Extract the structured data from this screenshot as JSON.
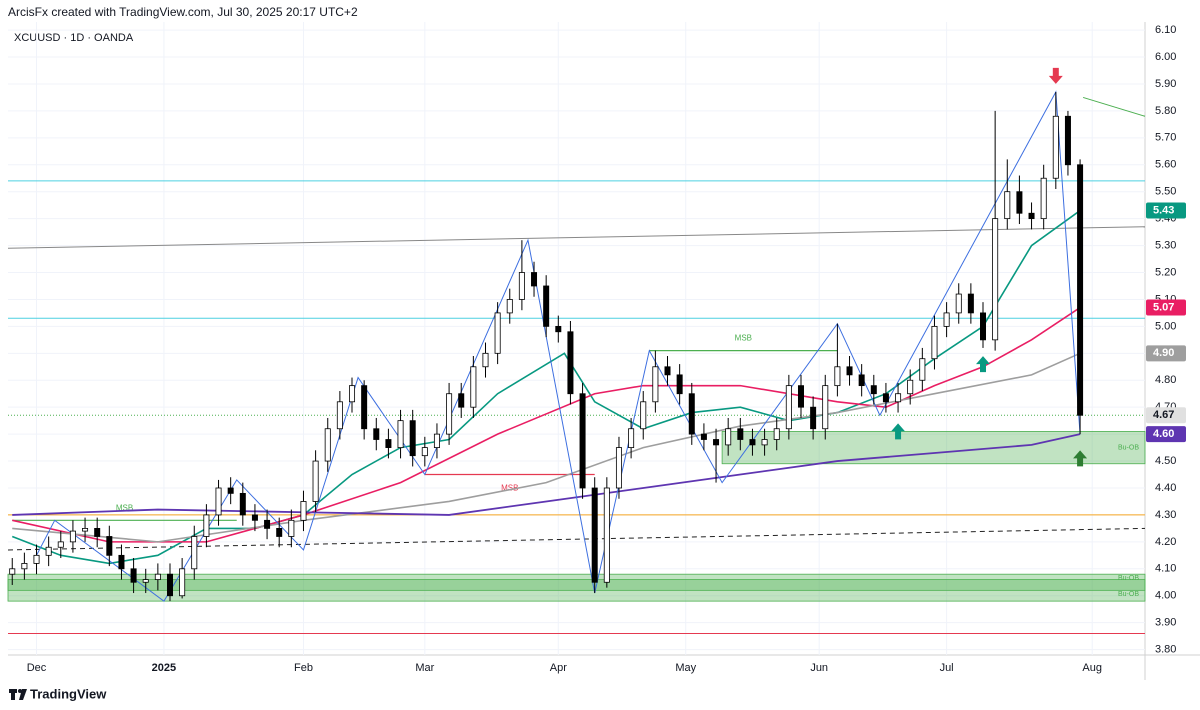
{
  "header": {
    "credit": "ArcisFx created with TradingView.com, Jul 30, 2025 20:17 UTC+2",
    "symbol": "XCUUSD · 1D · OANDA"
  },
  "footer": {
    "brand": "TradingView"
  },
  "chart_data": {
    "type": "candlestick",
    "xlim": [
      -0.7,
      186.7
    ],
    "ylim": [
      3.78,
      6.13
    ],
    "xticks": [
      {
        "value": 4,
        "label": "Dec"
      },
      {
        "value": 25,
        "label": "2025"
      },
      {
        "value": 48,
        "label": "Feb"
      },
      {
        "value": 68,
        "label": "Mar"
      },
      {
        "value": 90,
        "label": "Apr"
      },
      {
        "value": 111,
        "label": "May"
      },
      {
        "value": 133,
        "label": "Jun"
      },
      {
        "value": 154,
        "label": "Jul"
      },
      {
        "value": 178,
        "label": "Aug"
      }
    ],
    "yticks": [
      {
        "value": 3.8,
        "label": "3.80"
      },
      {
        "value": 3.9,
        "label": "3.90"
      },
      {
        "value": 4.0,
        "label": "4.00"
      },
      {
        "value": 4.1,
        "label": "4.10"
      },
      {
        "value": 4.2,
        "label": "4.20"
      },
      {
        "value": 4.3,
        "label": "4.30"
      },
      {
        "value": 4.4,
        "label": "4.40"
      },
      {
        "value": 4.5,
        "label": "4.50"
      },
      {
        "value": 4.6,
        "label": "4.60"
      },
      {
        "value": 4.7,
        "label": "4.70"
      },
      {
        "value": 4.8,
        "label": "4.80"
      },
      {
        "value": 4.9,
        "label": "4.90"
      },
      {
        "value": 5.0,
        "label": "5.00"
      },
      {
        "value": 5.1,
        "label": "5.10"
      },
      {
        "value": 5.2,
        "label": "5.20"
      },
      {
        "value": 5.3,
        "label": "5.30"
      },
      {
        "value": 5.4,
        "label": "5.40"
      },
      {
        "value": 5.5,
        "label": "5.50"
      },
      {
        "value": 5.6,
        "label": "5.60"
      },
      {
        "value": 5.7,
        "label": "5.70"
      },
      {
        "value": 5.8,
        "label": "5.80"
      },
      {
        "value": 5.9,
        "label": "5.90"
      },
      {
        "value": 6.0,
        "label": "6.00"
      },
      {
        "value": 6.1,
        "label": "6.10"
      }
    ],
    "grid": true,
    "candles": {
      "up_color": "#ffffff",
      "down_color": "#000000",
      "x": [
        0,
        2,
        4,
        6,
        8,
        10,
        12,
        14,
        16,
        18,
        20,
        22,
        24,
        26,
        28,
        30,
        32,
        34,
        36,
        38,
        40,
        42,
        44,
        46,
        48,
        50,
        52,
        54,
        56,
        58,
        60,
        62,
        64,
        66,
        68,
        70,
        72,
        74,
        76,
        78,
        80,
        82,
        84,
        86,
        88,
        90,
        92,
        94,
        96,
        98,
        100,
        102,
        104,
        106,
        108,
        110,
        112,
        114,
        116,
        118,
        120,
        122,
        124,
        126,
        128,
        130,
        132,
        134,
        136,
        138,
        140,
        142,
        144,
        146,
        148,
        150,
        152,
        154,
        156,
        158,
        160,
        162,
        164,
        166,
        168,
        170,
        172,
        174,
        176
      ],
      "open": [
        4.08,
        4.1,
        4.12,
        4.15,
        4.18,
        4.2,
        4.24,
        4.25,
        4.22,
        4.15,
        4.1,
        4.05,
        4.06,
        4.08,
        4.0,
        4.1,
        4.22,
        4.3,
        4.4,
        4.38,
        4.3,
        4.28,
        4.25,
        4.22,
        4.28,
        4.35,
        4.5,
        4.62,
        4.72,
        4.78,
        4.62,
        4.58,
        4.55,
        4.65,
        4.52,
        4.55,
        4.6,
        4.75,
        4.7,
        4.85,
        4.9,
        5.05,
        5.1,
        5.2,
        5.15,
        5.0,
        4.98,
        4.75,
        4.4,
        4.05,
        4.4,
        4.55,
        4.62,
        4.72,
        4.85,
        4.82,
        4.75,
        4.6,
        4.58,
        4.56,
        4.62,
        4.58,
        4.56,
        4.58,
        4.62,
        4.78,
        4.7,
        4.62,
        4.78,
        4.85,
        4.82,
        4.78,
        4.75,
        4.72,
        4.75,
        4.8,
        4.88,
        5.0,
        5.05,
        5.12,
        5.05,
        4.95,
        5.4,
        5.5,
        5.42,
        5.4,
        5.55,
        5.78,
        5.6
      ],
      "high": [
        4.14,
        4.16,
        4.19,
        4.22,
        4.24,
        4.28,
        4.29,
        4.29,
        4.26,
        4.19,
        4.14,
        4.1,
        4.12,
        4.12,
        4.14,
        4.26,
        4.34,
        4.43,
        4.44,
        4.42,
        4.34,
        4.32,
        4.29,
        4.32,
        4.39,
        4.54,
        4.66,
        4.76,
        4.81,
        4.8,
        4.66,
        4.62,
        4.69,
        4.69,
        4.59,
        4.64,
        4.79,
        4.79,
        4.89,
        4.94,
        5.09,
        5.14,
        5.32,
        5.24,
        5.19,
        5.04,
        5.02,
        4.79,
        4.44,
        4.44,
        4.59,
        4.66,
        4.76,
        4.91,
        4.89,
        4.86,
        4.79,
        4.64,
        4.62,
        4.66,
        4.66,
        4.62,
        4.62,
        4.66,
        4.82,
        4.82,
        4.74,
        4.82,
        5.01,
        4.89,
        4.86,
        4.82,
        4.79,
        4.79,
        4.84,
        4.92,
        5.04,
        5.09,
        5.16,
        5.16,
        5.09,
        5.8,
        5.62,
        5.56,
        5.46,
        5.6,
        5.87,
        5.8,
        5.62
      ],
      "low": [
        4.04,
        4.06,
        4.08,
        4.11,
        4.14,
        4.16,
        4.2,
        4.18,
        4.11,
        4.06,
        4.01,
        4.01,
        4.02,
        3.98,
        3.99,
        4.06,
        4.18,
        4.26,
        4.34,
        4.26,
        4.24,
        4.21,
        4.18,
        4.18,
        4.24,
        4.31,
        4.46,
        4.58,
        4.68,
        4.58,
        4.54,
        4.51,
        4.51,
        4.48,
        4.48,
        4.51,
        4.56,
        4.66,
        4.66,
        4.81,
        4.86,
        5.01,
        5.06,
        5.11,
        4.96,
        4.94,
        4.71,
        4.36,
        4.01,
        4.03,
        4.36,
        4.51,
        4.58,
        4.68,
        4.78,
        4.71,
        4.56,
        4.54,
        4.42,
        4.52,
        4.54,
        4.52,
        4.52,
        4.54,
        4.58,
        4.66,
        4.58,
        4.58,
        4.74,
        4.78,
        4.74,
        4.71,
        4.68,
        4.68,
        4.71,
        4.76,
        4.84,
        4.96,
        5.01,
        5.01,
        4.92,
        4.91,
        5.36,
        5.38,
        5.36,
        5.36,
        5.51,
        5.56,
        4.6
      ],
      "close": [
        4.1,
        4.12,
        4.15,
        4.18,
        4.2,
        4.24,
        4.25,
        4.22,
        4.15,
        4.1,
        4.05,
        4.06,
        4.08,
        4.0,
        4.1,
        4.22,
        4.3,
        4.4,
        4.38,
        4.3,
        4.28,
        4.25,
        4.22,
        4.28,
        4.35,
        4.5,
        4.62,
        4.72,
        4.78,
        4.62,
        4.58,
        4.55,
        4.65,
        4.52,
        4.55,
        4.6,
        4.75,
        4.7,
        4.85,
        4.9,
        5.05,
        5.1,
        5.2,
        5.15,
        5.0,
        4.98,
        4.75,
        4.4,
        4.05,
        4.4,
        4.55,
        4.62,
        4.72,
        4.85,
        4.82,
        4.75,
        4.6,
        4.58,
        4.56,
        4.62,
        4.58,
        4.56,
        4.58,
        4.62,
        4.78,
        4.7,
        4.62,
        4.78,
        4.85,
        4.82,
        4.78,
        4.75,
        4.72,
        4.75,
        4.8,
        4.88,
        5.0,
        5.05,
        5.12,
        5.05,
        4.95,
        5.4,
        5.5,
        5.42,
        5.4,
        5.55,
        5.78,
        5.6,
        4.67
      ]
    },
    "series": [
      {
        "color": "#089981",
        "width": 1.6,
        "x": [
          0,
          8,
          16,
          24,
          32,
          40,
          48,
          56,
          64,
          72,
          80,
          91,
          96,
          104,
          112,
          120,
          128,
          136,
          144,
          152,
          160,
          168,
          176
        ],
        "values": [
          4.22,
          4.15,
          4.12,
          4.15,
          4.25,
          4.25,
          4.3,
          4.45,
          4.55,
          4.58,
          4.75,
          4.9,
          4.72,
          4.62,
          4.68,
          4.7,
          4.65,
          4.68,
          4.75,
          4.88,
          5.0,
          5.3,
          5.43
        ]
      },
      {
        "color": "#e91e63",
        "width": 1.6,
        "x": [
          0,
          16,
          32,
          48,
          64,
          80,
          96,
          104,
          120,
          136,
          144,
          152,
          160,
          168,
          176
        ],
        "values": [
          4.28,
          4.2,
          4.2,
          4.3,
          4.42,
          4.6,
          4.75,
          4.78,
          4.78,
          4.72,
          4.7,
          4.78,
          4.85,
          4.95,
          5.07
        ]
      },
      {
        "color": "#9e9e9e",
        "width": 1.6,
        "x": [
          0,
          24,
          48,
          72,
          88,
          104,
          120,
          136,
          152,
          168,
          176
        ],
        "values": [
          4.25,
          4.2,
          4.28,
          4.35,
          4.42,
          4.55,
          4.63,
          4.68,
          4.75,
          4.82,
          4.9
        ]
      },
      {
        "color": "#5e35b1",
        "width": 1.8,
        "x": [
          0,
          24,
          48,
          72,
          88,
          104,
          120,
          136,
          152,
          168,
          176
        ],
        "values": [
          4.3,
          4.32,
          4.31,
          4.3,
          4.35,
          4.4,
          4.45,
          4.5,
          4.53,
          4.56,
          4.6
        ]
      },
      {
        "color": "#3d6fe0",
        "width": 1,
        "x": [
          4,
          7,
          25,
          37,
          48,
          57,
          68,
          85,
          96,
          105,
          117,
          136,
          143,
          172,
          176
        ],
        "values": [
          4.15,
          4.28,
          3.98,
          4.43,
          4.17,
          4.81,
          4.45,
          5.32,
          4.01,
          4.91,
          4.42,
          5.01,
          4.67,
          5.87,
          4.6
        ]
      }
    ],
    "levels": [
      {
        "color": "#4dd0e1",
        "x": [
          -0.7,
          186.7
        ],
        "values": [
          5.54,
          5.54
        ]
      },
      {
        "color": "#4dd0e1",
        "x": [
          -0.7,
          186.7
        ],
        "values": [
          5.03,
          5.03
        ]
      },
      {
        "color": "#888888",
        "x": [
          -0.7,
          186.7
        ],
        "values": [
          5.29,
          5.37
        ]
      },
      {
        "color": "#f5a623",
        "x": [
          -0.7,
          186.7
        ],
        "values": [
          4.3,
          4.3
        ]
      },
      {
        "color": "#222222",
        "x": [
          -0.7,
          186.7
        ],
        "values": [
          4.17,
          4.25
        ],
        "dash": true
      },
      {
        "color": "#e53950",
        "x": [
          -0.7,
          186.7
        ],
        "values": [
          3.86,
          3.86
        ]
      },
      {
        "color": "#4caf50",
        "x": [
          -0.7,
          186.7
        ],
        "values": [
          4.67,
          4.67
        ],
        "dot": true
      },
      {
        "color": "#4caf50",
        "x": [
          176.5,
          186.7
        ],
        "values": [
          5.85,
          5.78
        ]
      }
    ],
    "zones": [
      {
        "x": [
          117,
          186.7
        ],
        "range": [
          4.49,
          4.61
        ],
        "label": "Bu-OB"
      },
      {
        "x": [
          -0.7,
          186.7
        ],
        "range": [
          4.02,
          4.08
        ],
        "label": "Bu-OB"
      },
      {
        "x": [
          -0.7,
          186.7
        ],
        "range": [
          3.98,
          4.06
        ],
        "label": "Bu-OB"
      }
    ],
    "msb": [
      {
        "x": [
          0,
          37
        ],
        "value": 4.28,
        "color": "#4caf50",
        "label": "MSB"
      },
      {
        "x": [
          68,
          96
        ],
        "value": 4.45,
        "color": "#e53950",
        "label": "MSB"
      },
      {
        "x": [
          105,
          136
        ],
        "value": 4.91,
        "color": "#4caf50",
        "label": "MSB"
      }
    ],
    "signals": [
      {
        "x": 172,
        "value": 5.93,
        "dir": "down",
        "color": "#e53950"
      },
      {
        "x": 160,
        "value": 4.86,
        "dir": "up",
        "color": "#089981"
      },
      {
        "x": 146,
        "value": 4.61,
        "dir": "up",
        "color": "#089981"
      },
      {
        "x": 176,
        "value": 4.51,
        "dir": "up",
        "color": "#2e7d32"
      }
    ],
    "price_labels": [
      {
        "value": 5.43,
        "label": "5.43",
        "color": "#089981",
        "text_color": "#ffffff"
      },
      {
        "value": 5.07,
        "label": "5.07",
        "color": "#e91e63",
        "text_color": "#ffffff"
      },
      {
        "value": 4.9,
        "label": "4.90",
        "color": "#9e9e9e",
        "text_color": "#ffffff"
      },
      {
        "value": 4.67,
        "label": "4.67",
        "color": "#e0e0e0",
        "text_color": "#131722"
      },
      {
        "value": 4.6,
        "label": "4.60",
        "color": "#5e35b1",
        "text_color": "#ffffff"
      }
    ]
  }
}
